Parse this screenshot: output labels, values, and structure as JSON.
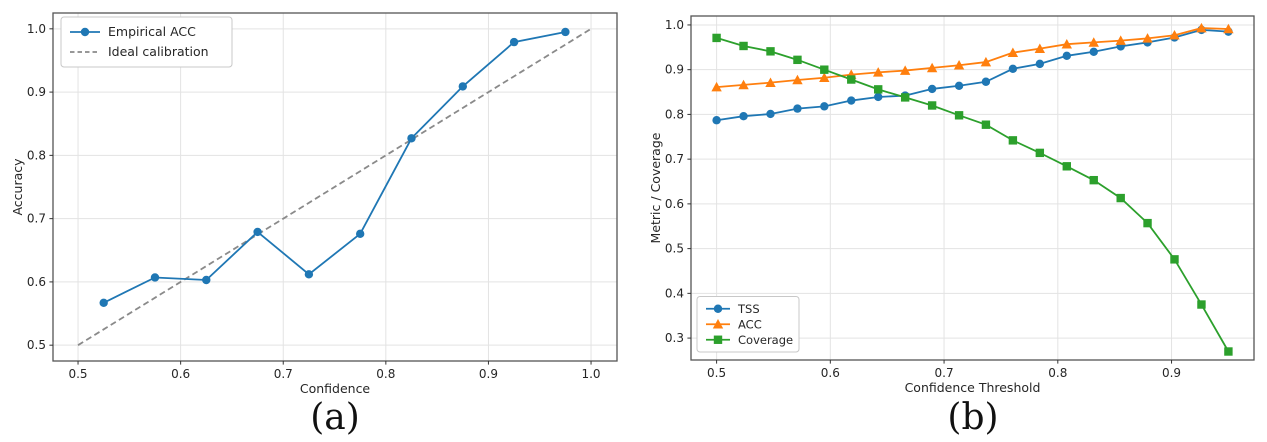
{
  "figure": {
    "background": "#ffffff",
    "grid_color": "#e3e3e3",
    "spine_color": "#555555",
    "tick_color": "#333333",
    "text_color": "#262626"
  },
  "chart_data": [
    {
      "id": "a",
      "type": "line",
      "caption": "(a)",
      "title": "",
      "xlabel": "Confidence",
      "ylabel": "Accuracy",
      "xlim": [
        0.4756,
        1.0253
      ],
      "ylim": [
        0.475,
        1.025
      ],
      "xticks": [
        0.5,
        0.6,
        0.7,
        0.8,
        0.9,
        1.0
      ],
      "yticks": [
        0.5,
        0.6,
        0.7,
        0.8,
        0.9,
        1.0
      ],
      "grid": true,
      "legend_position": "upper-left",
      "series": [
        {
          "name": "Empirical ACC",
          "color": "#1f77b4",
          "marker": "circle",
          "line": "solid",
          "zorder": 2,
          "x": [
            0.525,
            0.575,
            0.625,
            0.675,
            0.725,
            0.775,
            0.825,
            0.875,
            0.925,
            0.975
          ],
          "y": [
            0.567,
            0.607,
            0.603,
            0.679,
            0.612,
            0.676,
            0.827,
            0.909,
            0.979,
            0.995
          ]
        },
        {
          "name": "Ideal calibration",
          "color": "#8a8a8a",
          "marker": "none",
          "line": "dashed",
          "zorder": 1,
          "x": [
            0.5,
            1.0
          ],
          "y": [
            0.5,
            1.0
          ]
        }
      ]
    },
    {
      "id": "b",
      "type": "line",
      "caption": "(b)",
      "title": "",
      "xlabel": "Confidence Threshold",
      "ylabel": "Metric / Coverage",
      "xlim": [
        0.4775,
        0.9725
      ],
      "ylim": [
        0.251,
        1.02
      ],
      "xticks": [
        0.5,
        0.6,
        0.7,
        0.8,
        0.9
      ],
      "yticks": [
        0.3,
        0.4,
        0.5,
        0.6,
        0.7,
        0.8,
        0.9,
        1.0
      ],
      "grid": true,
      "legend_position": "lower-left",
      "series": [
        {
          "name": "TSS",
          "color": "#1f77b4",
          "marker": "circle",
          "line": "solid",
          "zorder": 1,
          "x": [
            0.5,
            0.5237,
            0.5474,
            0.5711,
            0.5947,
            0.6184,
            0.6421,
            0.6658,
            0.6895,
            0.7132,
            0.7368,
            0.7605,
            0.7842,
            0.8079,
            0.8316,
            0.8553,
            0.8789,
            0.9026,
            0.9263,
            0.95
          ],
          "y": [
            0.787,
            0.796,
            0.801,
            0.813,
            0.818,
            0.831,
            0.839,
            0.842,
            0.857,
            0.864,
            0.873,
            0.902,
            0.913,
            0.931,
            0.94,
            0.952,
            0.961,
            0.972,
            0.989,
            0.985
          ]
        },
        {
          "name": "ACC",
          "color": "#ff7f0e",
          "marker": "triangle",
          "line": "solid",
          "zorder": 2,
          "x": [
            0.5,
            0.5237,
            0.5474,
            0.5711,
            0.5947,
            0.6184,
            0.6421,
            0.6658,
            0.6895,
            0.7132,
            0.7368,
            0.7605,
            0.7842,
            0.8079,
            0.8316,
            0.8553,
            0.8789,
            0.9026,
            0.9263,
            0.95
          ],
          "y": [
            0.861,
            0.866,
            0.871,
            0.877,
            0.882,
            0.889,
            0.894,
            0.898,
            0.904,
            0.91,
            0.917,
            0.938,
            0.947,
            0.957,
            0.961,
            0.965,
            0.97,
            0.977,
            0.993,
            0.991
          ]
        },
        {
          "name": "Coverage",
          "color": "#2ca02c",
          "marker": "square",
          "line": "solid",
          "zorder": 3,
          "x": [
            0.5,
            0.5237,
            0.5474,
            0.5711,
            0.5947,
            0.6184,
            0.6421,
            0.6658,
            0.6895,
            0.7132,
            0.7368,
            0.7605,
            0.7842,
            0.8079,
            0.8316,
            0.8553,
            0.8789,
            0.9026,
            0.9263,
            0.95
          ],
          "y": [
            0.971,
            0.953,
            0.941,
            0.922,
            0.9,
            0.878,
            0.856,
            0.838,
            0.82,
            0.798,
            0.777,
            0.742,
            0.714,
            0.684,
            0.653,
            0.613,
            0.557,
            0.476,
            0.375,
            0.27
          ]
        }
      ]
    }
  ]
}
